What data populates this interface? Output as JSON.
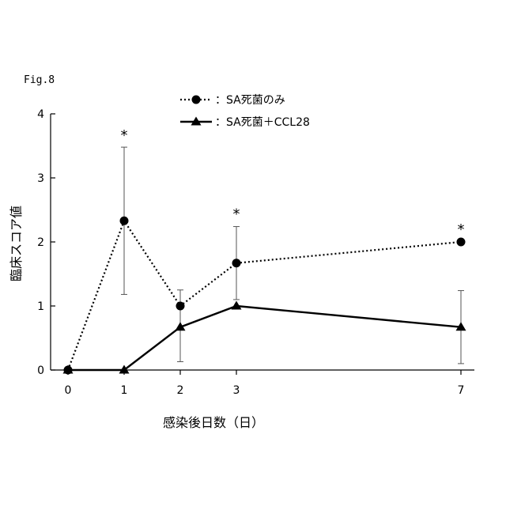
{
  "figure": {
    "label": "Fig.8"
  },
  "chart_data": {
    "type": "line",
    "xlabel": "感染後日数（日）",
    "ylabel": "臨床スコア値",
    "x": [
      0,
      1,
      2,
      3,
      7
    ],
    "x_ticks": [
      0,
      1,
      2,
      3,
      7
    ],
    "y_ticks": [
      0,
      1,
      2,
      3,
      4
    ],
    "ylim": [
      0,
      4
    ],
    "xlim": [
      0,
      7
    ],
    "legend_position": "top-center",
    "series": [
      {
        "name": "：SA死菌のみ",
        "style": "dotted",
        "marker": "circle",
        "color": "#000000",
        "values": [
          0,
          2.33,
          1.0,
          1.67,
          2.0
        ],
        "err_upper": [
          0,
          1.15,
          0.25,
          0.57,
          0
        ],
        "err_lower": [
          0,
          1.15,
          0.87,
          0.57,
          0
        ]
      },
      {
        "name": "：SA死菌＋CCL28",
        "style": "solid",
        "marker": "triangle",
        "color": "#000000",
        "values": [
          0,
          0,
          0.67,
          1.0,
          0.67
        ],
        "err_upper": [
          0,
          0,
          0,
          0,
          0.57
        ],
        "err_lower": [
          0,
          0,
          0,
          0,
          0.57
        ]
      }
    ],
    "annotations": [
      {
        "text": "*",
        "x": 1,
        "y": 3.47
      },
      {
        "text": "*",
        "x": 3,
        "y": 2.24
      },
      {
        "text": "*",
        "x": 7,
        "y": 2.0
      }
    ]
  }
}
